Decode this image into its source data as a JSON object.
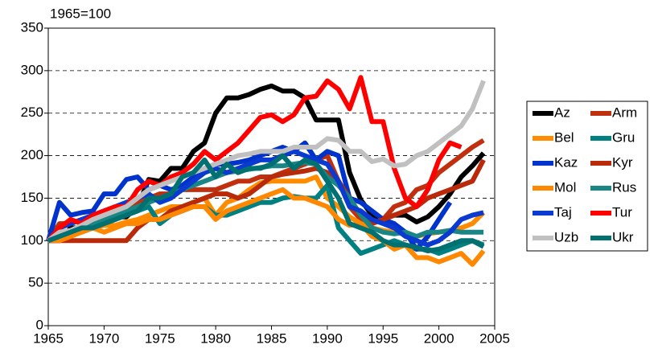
{
  "chart_data": {
    "type": "line",
    "y_label": "1965=100",
    "x": [
      1965,
      1966,
      1967,
      1968,
      1969,
      1970,
      1971,
      1972,
      1973,
      1974,
      1975,
      1976,
      1977,
      1978,
      1979,
      1980,
      1981,
      1982,
      1983,
      1984,
      1985,
      1986,
      1987,
      1988,
      1989,
      1990,
      1991,
      1992,
      1993,
      1994,
      1995,
      1996,
      1997,
      1998,
      1999,
      2000,
      2001,
      2002,
      2003,
      2004
    ],
    "xlim": [
      1965,
      2005
    ],
    "xticks": [
      1965,
      1970,
      1975,
      1980,
      1985,
      1990,
      1995,
      2000,
      2005
    ],
    "ylim": [
      0,
      350
    ],
    "yticks": [
      0,
      50,
      100,
      150,
      200,
      250,
      300,
      350
    ],
    "grid": true,
    "legend": "right",
    "series": [
      {
        "name": "Az",
        "color": "#000000",
        "values": [
          100,
          100,
          115,
          115,
          115,
          128,
          128,
          128,
          140,
          172,
          170,
          185,
          185,
          205,
          215,
          250,
          268,
          268,
          272,
          278,
          282,
          276,
          276,
          268,
          242,
          242,
          242,
          180,
          148,
          130,
          125,
          130,
          130,
          122,
          128,
          140,
          155,
          175,
          188,
          203
        ]
      },
      {
        "name": "Arm",
        "color": "#c0300f",
        "values": [
          100,
          120,
          120,
          125,
          125,
          130,
          130,
          140,
          145,
          150,
          155,
          155,
          160,
          160,
          160,
          160,
          165,
          170,
          170,
          175,
          175,
          180,
          185,
          190,
          195,
          200,
          170,
          140,
          125,
          120,
          125,
          140,
          145,
          160,
          165,
          180,
          190,
          200,
          210,
          218
        ]
      },
      {
        "name": "Bel",
        "color": "#ff8c00",
        "values": [
          100,
          105,
          108,
          112,
          115,
          118,
          118,
          122,
          125,
          130,
          135,
          140,
          140,
          145,
          150,
          130,
          145,
          150,
          160,
          168,
          170,
          170,
          170,
          170,
          175,
          150,
          140,
          128,
          120,
          115,
          112,
          110,
          108,
          105,
          108,
          110,
          112,
          115,
          120,
          133
        ]
      },
      {
        "name": "Gru",
        "color": "#008080",
        "values": [
          100,
          105,
          110,
          110,
          115,
          120,
          125,
          130,
          135,
          140,
          120,
          130,
          135,
          140,
          140,
          130,
          130,
          135,
          140,
          145,
          145,
          150,
          152,
          150,
          150,
          165,
          115,
          100,
          85,
          90,
          95,
          100,
          95,
          90,
          90,
          85,
          90,
          95,
          100,
          95
        ]
      },
      {
        "name": "Kaz",
        "color": "#0033cc",
        "values": [
          100,
          145,
          130,
          133,
          135,
          155,
          155,
          172,
          175,
          160,
          165,
          160,
          165,
          175,
          185,
          190,
          190,
          192,
          195,
          200,
          205,
          210,
          205,
          215,
          195,
          205,
          200,
          150,
          145,
          135,
          125,
          120,
          110,
          90,
          105,
          125,
          145,
          null,
          null,
          null
        ]
      },
      {
        "name": "Kyr",
        "color": "#b82a0a",
        "values": [
          100,
          100,
          100,
          100,
          100,
          100,
          100,
          100,
          115,
          125,
          125,
          135,
          140,
          145,
          150,
          155,
          155,
          150,
          155,
          165,
          175,
          178,
          180,
          182,
          185,
          180,
          170,
          150,
          130,
          120,
          125,
          130,
          135,
          140,
          150,
          155,
          160,
          165,
          170,
          195
        ]
      },
      {
        "name": "Mol",
        "color": "#ff8800",
        "values": [
          100,
          100,
          105,
          110,
          115,
          110,
          115,
          120,
          120,
          125,
          125,
          130,
          135,
          140,
          140,
          125,
          135,
          140,
          145,
          150,
          155,
          160,
          150,
          150,
          145,
          140,
          125,
          118,
          120,
          105,
          100,
          90,
          95,
          80,
          80,
          75,
          80,
          85,
          72,
          88
        ]
      },
      {
        "name": "Rus",
        "color": "#1a8585",
        "values": [
          100,
          105,
          110,
          115,
          120,
          125,
          130,
          135,
          140,
          145,
          150,
          155,
          160,
          165,
          170,
          175,
          180,
          182,
          184,
          186,
          188,
          188,
          190,
          192,
          190,
          175,
          165,
          150,
          130,
          115,
          110,
          108,
          110,
          105,
          110,
          110,
          112,
          110,
          110,
          110
        ]
      },
      {
        "name": "Taj",
        "color": "#0a3ad0",
        "values": [
          100,
          115,
          120,
          125,
          130,
          135,
          140,
          145,
          150,
          155,
          145,
          150,
          160,
          170,
          180,
          185,
          180,
          185,
          190,
          195,
          195,
          200,
          205,
          200,
          195,
          190,
          170,
          140,
          135,
          125,
          120,
          115,
          105,
          100,
          95,
          100,
          110,
          125,
          130,
          133
        ]
      },
      {
        "name": "Tur",
        "color": "#ff0000",
        "values": [
          100,
          115,
          125,
          120,
          130,
          135,
          140,
          140,
          160,
          170,
          165,
          175,
          180,
          190,
          205,
          195,
          205,
          215,
          230,
          245,
          248,
          240,
          248,
          268,
          270,
          288,
          278,
          255,
          292,
          240,
          240,
          185,
          150,
          140,
          160,
          195,
          215,
          210,
          null,
          null
        ]
      },
      {
        "name": "Uzb",
        "color": "#c0c0c0",
        "values": [
          100,
          110,
          112,
          118,
          125,
          130,
          135,
          140,
          150,
          160,
          165,
          170,
          175,
          180,
          185,
          190,
          195,
          200,
          202,
          205,
          205,
          205,
          210,
          210,
          210,
          220,
          218,
          205,
          205,
          193,
          196,
          188,
          190,
          200,
          205,
          215,
          225,
          235,
          255,
          288
        ]
      },
      {
        "name": "Ukr",
        "color": "#007070",
        "values": [
          100,
          105,
          110,
          115,
          115,
          120,
          125,
          130,
          135,
          150,
          150,
          155,
          175,
          180,
          195,
          175,
          190,
          180,
          185,
          185,
          190,
          200,
          185,
          195,
          190,
          170,
          150,
          120,
          115,
          110,
          100,
          95,
          95,
          92,
          88,
          90,
          95,
          100,
          100,
          93
        ]
      }
    ]
  }
}
